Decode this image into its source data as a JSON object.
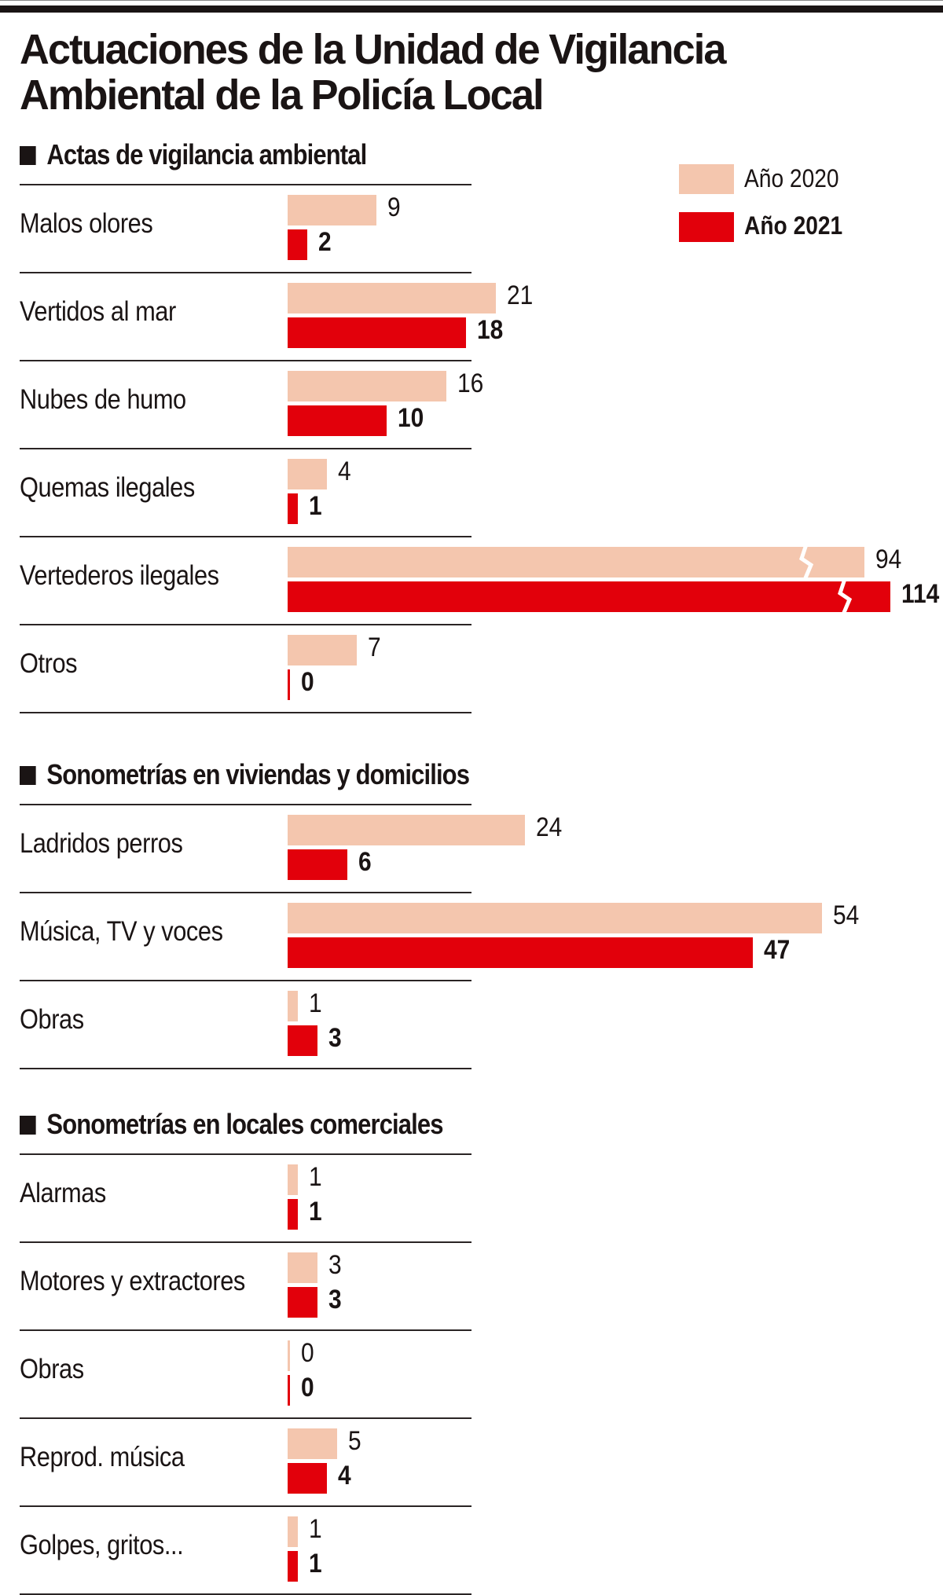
{
  "chart_data": {
    "type": "bar",
    "orientation": "horizontal",
    "title": "Actuaciones de la Unidad de Vigilancia Ambiental de la Policía Local",
    "legend": {
      "placement": "top-right",
      "entries": [
        "Año 2020",
        "Año 2021"
      ]
    },
    "colors": {
      "Año 2020": "#f4c6ae",
      "Año 2021": "#e2000b"
    },
    "grid": false,
    "axis_broken_for": [
      "Vertederos ilegales"
    ],
    "groups": [
      {
        "title": "Actas de vigilancia ambiental",
        "categories": [
          "Malos olores",
          "Vertidos al mar",
          "Nubes de humo",
          "Quemas ilegales",
          "Vertederos ilegales",
          "Otros"
        ],
        "series": [
          {
            "name": "Año 2020",
            "values": [
              9,
              21,
              16,
              4,
              94,
              7
            ]
          },
          {
            "name": "Año 2021",
            "values": [
              2,
              18,
              10,
              1,
              114,
              0
            ]
          }
        ]
      },
      {
        "title": "Sonometrías en viviendas y domicilios",
        "categories": [
          "Ladridos perros",
          "Música, TV y voces",
          "Obras"
        ],
        "series": [
          {
            "name": "Año 2020",
            "values": [
              24,
              54,
              1
            ]
          },
          {
            "name": "Año 2021",
            "values": [
              6,
              47,
              3
            ]
          }
        ]
      },
      {
        "title": "Sonometrías en locales comerciales",
        "categories": [
          "Alarmas",
          "Motores y extractores",
          "Obras",
          "Reprod. música",
          "Golpes, gritos..."
        ],
        "series": [
          {
            "name": "Año 2020",
            "values": [
              1,
              3,
              0,
              5,
              1
            ]
          },
          {
            "name": "Año 2021",
            "values": [
              1,
              3,
              0,
              4,
              1
            ]
          }
        ]
      }
    ]
  }
}
